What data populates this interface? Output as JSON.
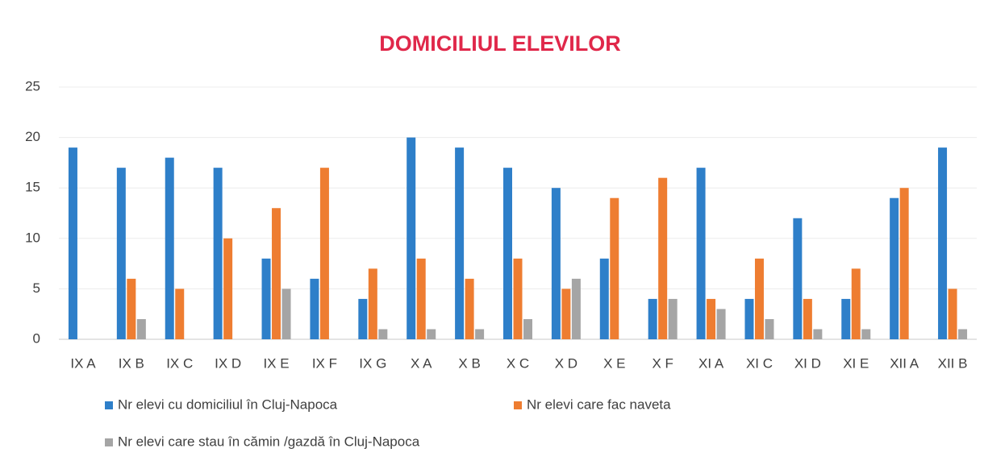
{
  "chart_data": {
    "type": "bar",
    "title": "DOMICILIUL ELEVILOR",
    "categories": [
      "IX A",
      "IX B",
      "IX C",
      "IX D",
      "IX E",
      "IX F",
      "IX G",
      "X A",
      "X B",
      "X C",
      "X D",
      "X E",
      "X F",
      "XI A",
      "XI C",
      "XI D",
      "XI E",
      "XII A",
      "XII B"
    ],
    "series": [
      {
        "name": "Nr elevi cu domiciliul în Cluj-Napoca",
        "color": "#2e7fc9",
        "values": [
          19,
          17,
          18,
          17,
          8,
          6,
          4,
          20,
          19,
          17,
          15,
          8,
          4,
          17,
          4,
          12,
          4,
          14,
          19
        ]
      },
      {
        "name": "Nr elevi care fac naveta",
        "color": "#ee7d31",
        "values": [
          0,
          6,
          5,
          10,
          13,
          17,
          7,
          8,
          6,
          8,
          5,
          14,
          16,
          4,
          8,
          4,
          7,
          15,
          5
        ]
      },
      {
        "name": "Nr elevi care stau în cămin /gazdă în Cluj-Napoca",
        "color": "#a5a5a5",
        "values": [
          0,
          2,
          0,
          0,
          5,
          0,
          1,
          1,
          1,
          2,
          6,
          0,
          4,
          3,
          2,
          1,
          1,
          0,
          1
        ]
      }
    ],
    "ylim": [
      0,
      25
    ],
    "yticks": [
      0,
      5,
      10,
      15,
      20,
      25
    ],
    "grid": true,
    "legend": "bottom"
  }
}
